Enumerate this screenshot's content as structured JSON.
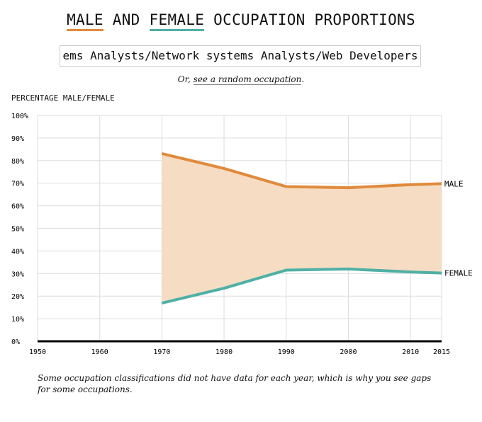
{
  "header": {
    "title_male": "MALE",
    "title_and": " AND ",
    "title_female": "FEMALE",
    "title_rest": " OCCUPATION PROPORTIONS"
  },
  "occupation_input": {
    "value": "ems Analysts/Network systems Analysts/Web Developers"
  },
  "random": {
    "prefix": "Or, ",
    "link": "see a random occupation",
    "suffix": "."
  },
  "note": "Some occupation classifications did not have data for each year, which is why you see gaps for some occupations.",
  "colors": {
    "male": "#e08a3c",
    "female": "#4fb0a5",
    "fill": "#f5dcc3"
  },
  "chart_data": {
    "type": "area",
    "ylabel": "PERCENTAGE MALE/FEMALE",
    "xlim": [
      1950,
      2015
    ],
    "ylim": [
      0,
      100
    ],
    "grid": true,
    "x_ticks": [
      "1950",
      "1960",
      "1970",
      "1980",
      "1990",
      "2000",
      "2010",
      "2015"
    ],
    "y_ticks": [
      "0%",
      "10%",
      "20%",
      "30%",
      "40%",
      "50%",
      "60%",
      "70%",
      "80%",
      "90%",
      "100%"
    ],
    "x": [
      1970,
      1980,
      1990,
      2000,
      2010,
      2015
    ],
    "series": [
      {
        "name": "MALE",
        "values": [
          83.1,
          76.5,
          68.5,
          68.0,
          69.3,
          69.8
        ]
      },
      {
        "name": "FEMALE",
        "values": [
          16.9,
          23.5,
          31.5,
          32.0,
          30.7,
          30.2
        ]
      }
    ]
  }
}
